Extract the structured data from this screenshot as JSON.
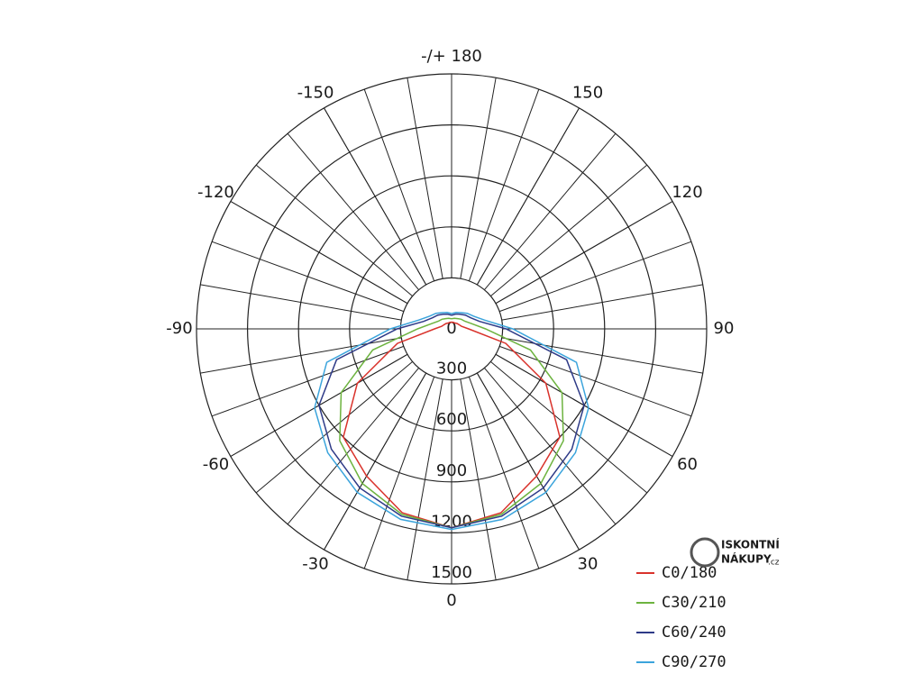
{
  "chart_data": {
    "type": "polar",
    "x": [
      -180,
      -165,
      -150,
      -135,
      -120,
      -105,
      -90,
      -75,
      -60,
      -45,
      -30,
      -15,
      0,
      15,
      30,
      45,
      60,
      75,
      90,
      105,
      120,
      135,
      150,
      165,
      180
    ],
    "series": [
      {
        "name": "C0/180",
        "color": "#d9322b",
        "values": [
          40,
          40,
          40,
          45,
          50,
          60,
          100,
          330,
          640,
          900,
          1000,
          1120,
          1170,
          1120,
          1000,
          900,
          640,
          330,
          100,
          60,
          50,
          45,
          40,
          40,
          40
        ]
      },
      {
        "name": "C30/210",
        "color": "#6db33f",
        "values": [
          60,
          65,
          70,
          80,
          90,
          120,
          200,
          480,
          750,
          930,
          1050,
          1130,
          1170,
          1130,
          1050,
          930,
          750,
          480,
          200,
          120,
          90,
          80,
          70,
          65,
          60
        ]
      },
      {
        "name": "C60/240",
        "color": "#2e3a87",
        "values": [
          80,
          90,
          100,
          115,
          130,
          170,
          320,
          700,
          900,
          1000,
          1080,
          1140,
          1170,
          1140,
          1080,
          1000,
          900,
          700,
          320,
          170,
          130,
          115,
          100,
          90,
          80
        ]
      },
      {
        "name": "C90/270",
        "color": "#3ba4dc",
        "values": [
          90,
          100,
          110,
          130,
          150,
          200,
          360,
          760,
          930,
          1030,
          1110,
          1160,
          1180,
          1160,
          1110,
          1030,
          930,
          760,
          360,
          200,
          150,
          130,
          110,
          100,
          90
        ]
      }
    ],
    "xticks": [
      -150,
      -120,
      -90,
      -60,
      -30,
      0,
      30,
      60,
      90,
      120,
      150,
      {
        "value": 180,
        "label": "-/+ 180"
      }
    ],
    "ylim": [
      0,
      1500
    ],
    "yticks": [
      0,
      300,
      600,
      900,
      1200,
      1500
    ],
    "legend": "bottom-right",
    "annotations": [
      "ISKONTNÍ",
      "NÁKUPY",
      ".cz"
    ]
  }
}
